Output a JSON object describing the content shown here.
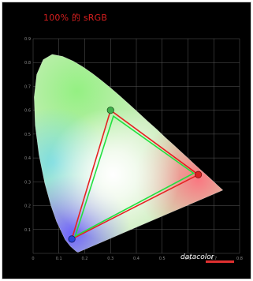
{
  "chart_data": {
    "type": "scatter",
    "title": "100% 的 sRGB",
    "xlim": [
      0,
      0.8
    ],
    "ylim": [
      0,
      0.9
    ],
    "x_ticks": [
      "0",
      "0.1",
      "0.2",
      "0.3",
      "0.4",
      "0.5",
      "0.6",
      "0.7",
      "0.8"
    ],
    "y_ticks": [
      "0.1",
      "0.2",
      "0.3",
      "0.4",
      "0.5",
      "0.6",
      "0.7",
      "0.8",
      "0.9"
    ],
    "grid": true,
    "series": [
      {
        "points": [
          [
            0.64,
            0.33
          ],
          [
            0.3,
            0.6
          ],
          [
            0.15,
            0.06
          ]
        ],
        "color": "#e52222"
      },
      {
        "points": [
          [
            0.622,
            0.336
          ],
          [
            0.311,
            0.575
          ],
          [
            0.163,
            0.072
          ]
        ],
        "color": "#22e040"
      }
    ],
    "primary_markers": [
      {
        "x": 0.64,
        "y": 0.33,
        "color": "#d82424"
      },
      {
        "x": 0.3,
        "y": 0.6,
        "color": "#3fb04a"
      },
      {
        "x": 0.15,
        "y": 0.06,
        "color": "#2a46d8"
      }
    ],
    "spectral_locus": [
      [
        0.175,
        0.005
      ],
      [
        0.172,
        0.005
      ],
      [
        0.166,
        0.009
      ],
      [
        0.144,
        0.03
      ],
      [
        0.124,
        0.058
      ],
      [
        0.091,
        0.133
      ],
      [
        0.069,
        0.201
      ],
      [
        0.045,
        0.295
      ],
      [
        0.023,
        0.413
      ],
      [
        0.008,
        0.538
      ],
      [
        0.004,
        0.655
      ],
      [
        0.014,
        0.75
      ],
      [
        0.039,
        0.812
      ],
      [
        0.074,
        0.834
      ],
      [
        0.114,
        0.826
      ],
      [
        0.155,
        0.806
      ],
      [
        0.193,
        0.782
      ],
      [
        0.23,
        0.754
      ],
      [
        0.266,
        0.724
      ],
      [
        0.302,
        0.692
      ],
      [
        0.337,
        0.659
      ],
      [
        0.373,
        0.624
      ],
      [
        0.409,
        0.589
      ],
      [
        0.444,
        0.554
      ],
      [
        0.479,
        0.52
      ],
      [
        0.512,
        0.486
      ],
      [
        0.545,
        0.454
      ],
      [
        0.575,
        0.424
      ],
      [
        0.603,
        0.396
      ],
      [
        0.627,
        0.372
      ],
      [
        0.648,
        0.351
      ],
      [
        0.666,
        0.334
      ],
      [
        0.68,
        0.32
      ],
      [
        0.692,
        0.308
      ],
      [
        0.702,
        0.298
      ],
      [
        0.71,
        0.29
      ],
      [
        0.735,
        0.265
      ]
    ],
    "watermark": "datacolor"
  }
}
